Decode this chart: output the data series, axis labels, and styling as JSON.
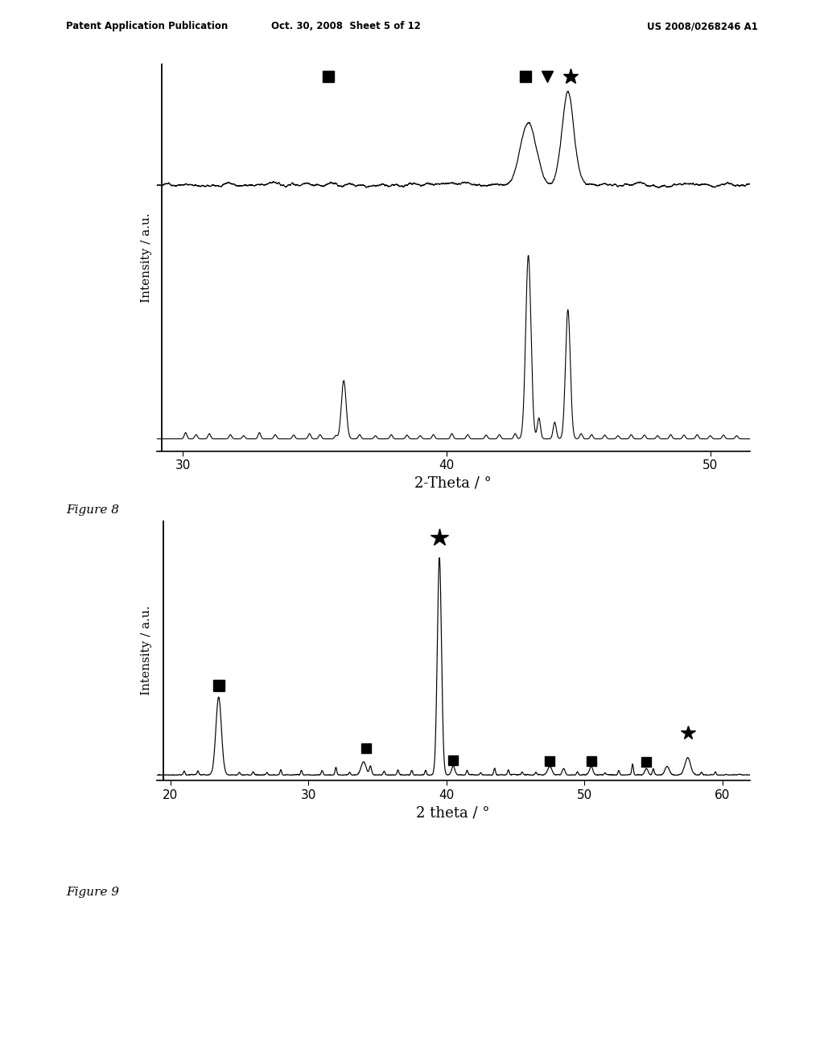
{
  "header_left": "Patent Application Publication",
  "header_mid": "Oct. 30, 2008  Sheet 5 of 12",
  "header_right": "US 2008/0268246 A1",
  "fig7_xlabel": "2-Theta / °",
  "fig7_ylabel": "Intensity / a.u.",
  "fig7_xlim": [
    29.0,
    51.5
  ],
  "fig7_xticks": [
    30,
    40,
    50
  ],
  "fig8_label": "Figure 8",
  "fig8_xlabel": "2 theta / °",
  "fig8_ylabel": "Intensity / a.u.",
  "fig8_xlim": [
    19.0,
    62.0
  ],
  "fig8_xticks": [
    20,
    30,
    40,
    50,
    60
  ],
  "fig9_label": "Figure 9",
  "bg_color": "#ffffff",
  "line_color": "#000000"
}
